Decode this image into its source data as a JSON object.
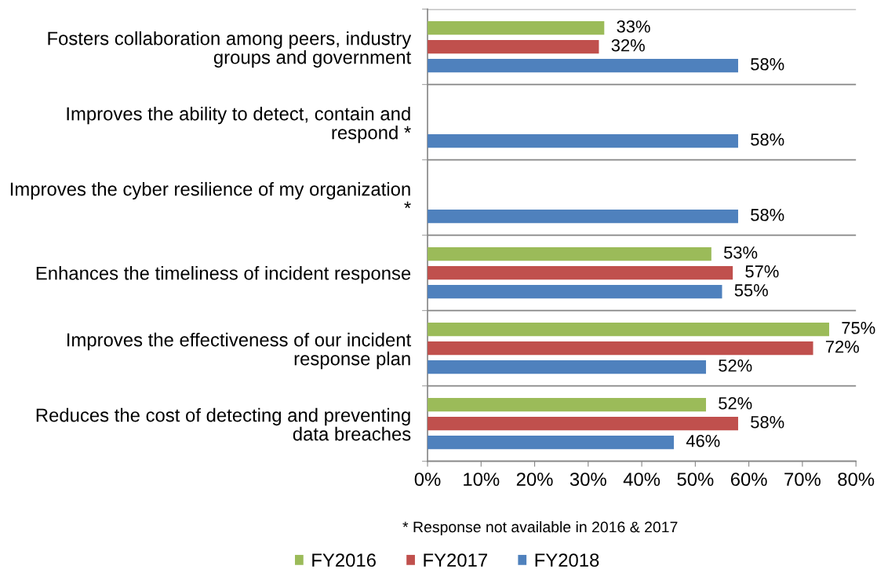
{
  "chart_data": {
    "type": "bar",
    "orientation": "horizontal",
    "categories": [
      "Fosters collaboration among peers, industry\ngroups and government",
      "Improves the ability to detect, contain and\nrespond *",
      "Improves the cyber resilience of my organization\n*",
      "Enhances the timeliness of incident response",
      "Improves the effectiveness of our incident\nresponse plan",
      "Reduces the cost of detecting and preventing\ndata breaches"
    ],
    "series": [
      {
        "name": "FY2016",
        "color": "#9bbb59",
        "values": [
          33,
          null,
          null,
          53,
          75,
          52
        ],
        "value_labels": [
          "33%",
          null,
          null,
          "53%",
          "75%",
          "52%"
        ]
      },
      {
        "name": "FY2017",
        "color": "#c0504d",
        "values": [
          32,
          null,
          null,
          57,
          72,
          58
        ],
        "value_labels": [
          "32%",
          null,
          null,
          "57%",
          "72%",
          "58%"
        ]
      },
      {
        "name": "FY2018",
        "color": "#4f81bd",
        "values": [
          58,
          58,
          58,
          55,
          52,
          46
        ],
        "value_labels": [
          "58%",
          "58%",
          "58%",
          "55%",
          "52%",
          "46%"
        ]
      }
    ],
    "xlim": [
      0,
      80
    ],
    "xticks": [
      {
        "value": 0,
        "label": "0%"
      },
      {
        "value": 10,
        "label": "10%"
      },
      {
        "value": 20,
        "label": "20%"
      },
      {
        "value": 30,
        "label": "30%"
      },
      {
        "value": 40,
        "label": "40%"
      },
      {
        "value": 50,
        "label": "50%"
      },
      {
        "value": 60,
        "label": "60%"
      },
      {
        "value": 70,
        "label": "70%"
      },
      {
        "value": 80,
        "label": "80%"
      }
    ],
    "grid": "y",
    "legend": "bottom",
    "annotations": [
      "* Response not available in 2016 & 2017"
    ]
  }
}
